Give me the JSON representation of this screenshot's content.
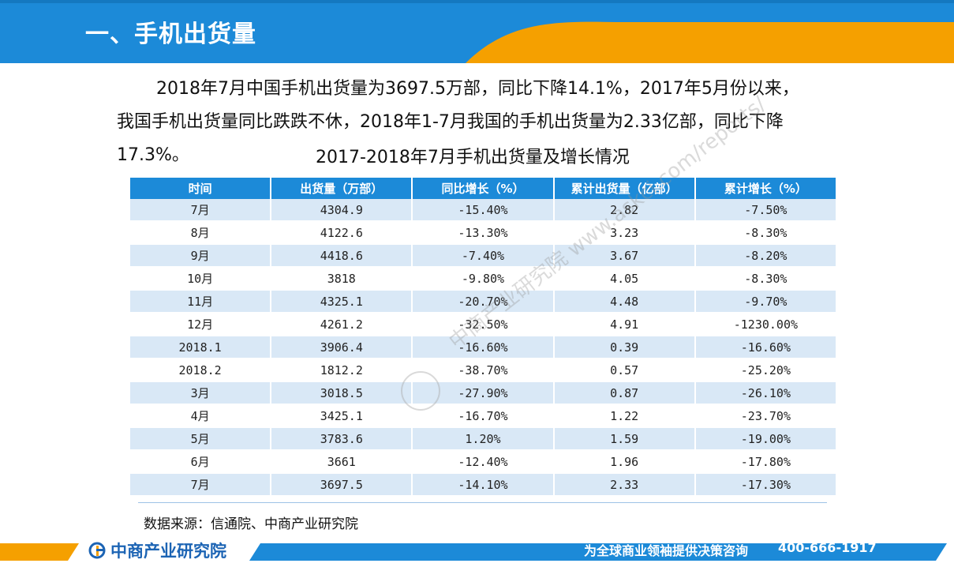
{
  "header": {
    "title": "一、手机出货量"
  },
  "intro": {
    "line1": "2018年7月中国手机出货量为3697.5万部，同比下降14.1%，2017年5月份以来，",
    "line2": "我国手机出货量同比跌跌不休，2018年1-7月我国的手机出货量为2.33亿部，同比下降",
    "line3": "17.3%。"
  },
  "table": {
    "title": "2017-2018年7月手机出货量及增长情况",
    "headers": [
      "时间",
      "出货量（万部）",
      "同比增长（%）",
      "累计出货量（亿部）",
      "累计增长（%）"
    ],
    "rows": [
      [
        "7月",
        "4304.9",
        "-15.40%",
        "2.82",
        "-7.50%"
      ],
      [
        "8月",
        "4122.6",
        "-13.30%",
        "3.23",
        "-8.30%"
      ],
      [
        "9月",
        "4418.6",
        "-7.40%",
        "3.67",
        "-8.20%"
      ],
      [
        "10月",
        "3818",
        "-9.80%",
        "4.05",
        "-8.30%"
      ],
      [
        "11月",
        "4325.1",
        "-20.70%",
        "4.48",
        "-9.70%"
      ],
      [
        "12月",
        "4261.2",
        "-32.50%",
        "4.91",
        "-1230.00%"
      ],
      [
        "2018.1",
        "3906.4",
        "-16.60%",
        "0.39",
        "-16.60%"
      ],
      [
        "2018.2",
        "1812.2",
        "-38.70%",
        "0.57",
        "-25.20%"
      ],
      [
        "3月",
        "3018.5",
        "-27.90%",
        "0.87",
        "-26.10%"
      ],
      [
        "4月",
        "3425.1",
        "-16.70%",
        "1.22",
        "-23.70%"
      ],
      [
        "5月",
        "3783.6",
        "1.20%",
        "1.59",
        "-19.00%"
      ],
      [
        "6月",
        "3661",
        "-12.40%",
        "1.96",
        "-17.80%"
      ],
      [
        "7月",
        "3697.5",
        "-14.10%",
        "2.33",
        "-17.30%"
      ]
    ]
  },
  "source": "数据来源：信通院、中商产业研究院",
  "watermark": "中商产业研究院 www.askci.com/reports/",
  "footer": {
    "brand": "中商产业研究院",
    "slogan": "为全球商业领袖提供决策咨询",
    "phone": "400-666-1917"
  },
  "colors": {
    "header_blue": "#1c8ad8",
    "accent_orange": "#f5a000",
    "row_stripe": "#d9e8f6",
    "brand_blue": "#1c64b4"
  },
  "icons": {
    "brand_logo": "askci-logo-icon"
  }
}
